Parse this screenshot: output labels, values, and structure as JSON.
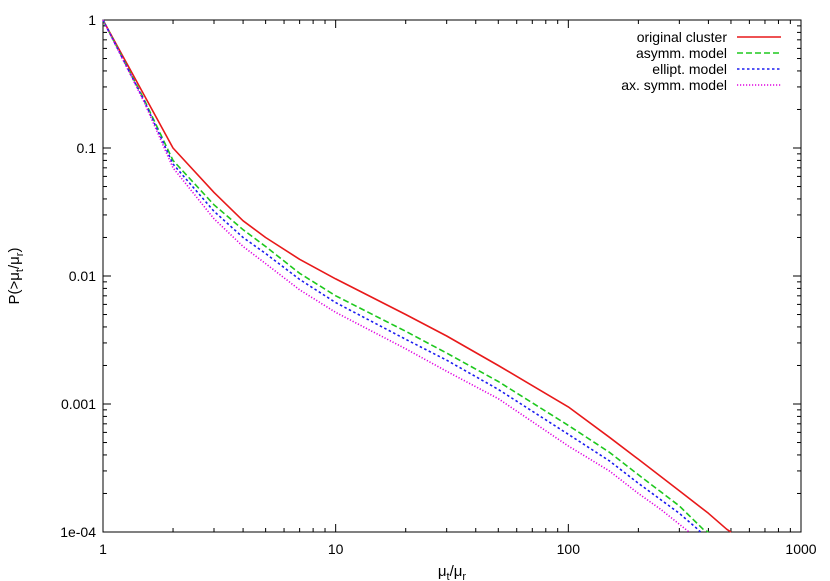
{
  "chart_data": {
    "type": "line",
    "title": "",
    "xscale": "log",
    "yscale": "log",
    "xlim": [
      1,
      1000
    ],
    "ylim": [
      0.0001,
      1
    ],
    "x_ticks": [
      1,
      10,
      100,
      1000
    ],
    "x_tick_labels": [
      "1",
      "10",
      "100",
      "1000"
    ],
    "y_ticks": [
      0.0001,
      0.001,
      0.01,
      0.1,
      1
    ],
    "y_tick_labels": [
      "1e-04",
      "0.001",
      "0.01",
      "0.1",
      "1"
    ],
    "xlabel": {
      "base": "μ",
      "sub1": "t",
      "mid": "/μ",
      "sub2": "r"
    },
    "ylabel": {
      "pre": "P(>μ",
      "sub1": "t",
      "mid": "/μ",
      "sub2": "r",
      "post": ")"
    },
    "grid": false,
    "legend_position": "top-right",
    "series": [
      {
        "name": "original cluster",
        "color": "#e8191a",
        "dash": "solid",
        "points": [
          [
            1,
            1
          ],
          [
            1.5,
            0.26
          ],
          [
            2,
            0.1
          ],
          [
            3,
            0.045
          ],
          [
            4,
            0.027
          ],
          [
            5,
            0.02
          ],
          [
            7,
            0.0135
          ],
          [
            10,
            0.0095
          ],
          [
            20,
            0.005
          ],
          [
            30,
            0.0034
          ],
          [
            50,
            0.002
          ],
          [
            100,
            0.00095
          ],
          [
            150,
            0.00055
          ],
          [
            200,
            0.00037
          ],
          [
            300,
            0.00021
          ],
          [
            400,
            0.00014
          ],
          [
            480,
            0.000105
          ],
          [
            500,
            0.0001
          ]
        ]
      },
      {
        "name": "asymm. model",
        "color": "#1ec81e",
        "dash": "dashed",
        "points": [
          [
            1,
            1
          ],
          [
            1.5,
            0.24
          ],
          [
            2,
            0.08
          ],
          [
            3,
            0.036
          ],
          [
            4,
            0.023
          ],
          [
            5,
            0.017
          ],
          [
            7,
            0.0105
          ],
          [
            10,
            0.007
          ],
          [
            20,
            0.0037
          ],
          [
            30,
            0.0025
          ],
          [
            50,
            0.0015
          ],
          [
            100,
            0.00068
          ],
          [
            150,
            0.00042
          ],
          [
            200,
            0.00028
          ],
          [
            300,
            0.00016
          ],
          [
            380,
            0.000105
          ],
          [
            400,
            0.0001
          ]
        ]
      },
      {
        "name": "ellipt. model",
        "color": "#1c1cf0",
        "dash": "dotted",
        "points": [
          [
            1,
            1
          ],
          [
            1.5,
            0.235
          ],
          [
            2,
            0.075
          ],
          [
            3,
            0.032
          ],
          [
            4,
            0.02
          ],
          [
            5,
            0.015
          ],
          [
            7,
            0.0094
          ],
          [
            10,
            0.0062
          ],
          [
            20,
            0.0032
          ],
          [
            30,
            0.0022
          ],
          [
            50,
            0.0013
          ],
          [
            100,
            0.00058
          ],
          [
            150,
            0.00036
          ],
          [
            200,
            0.00024
          ],
          [
            300,
            0.00014
          ],
          [
            360,
            0.000105
          ],
          [
            370,
            0.0001
          ]
        ]
      },
      {
        "name": "ax. symm. model",
        "color": "#e000e0",
        "dash": "fine-dotted",
        "points": [
          [
            1,
            1
          ],
          [
            1.5,
            0.23
          ],
          [
            2,
            0.07
          ],
          [
            3,
            0.028
          ],
          [
            4,
            0.017
          ],
          [
            5,
            0.0125
          ],
          [
            7,
            0.0078
          ],
          [
            10,
            0.0052
          ],
          [
            20,
            0.0027
          ],
          [
            30,
            0.0018
          ],
          [
            50,
            0.0011
          ],
          [
            100,
            0.00047
          ],
          [
            150,
            0.0003
          ],
          [
            200,
            0.0002
          ],
          [
            250,
            0.00015
          ],
          [
            300,
            0.000115
          ],
          [
            330,
            0.0001
          ]
        ]
      }
    ]
  }
}
